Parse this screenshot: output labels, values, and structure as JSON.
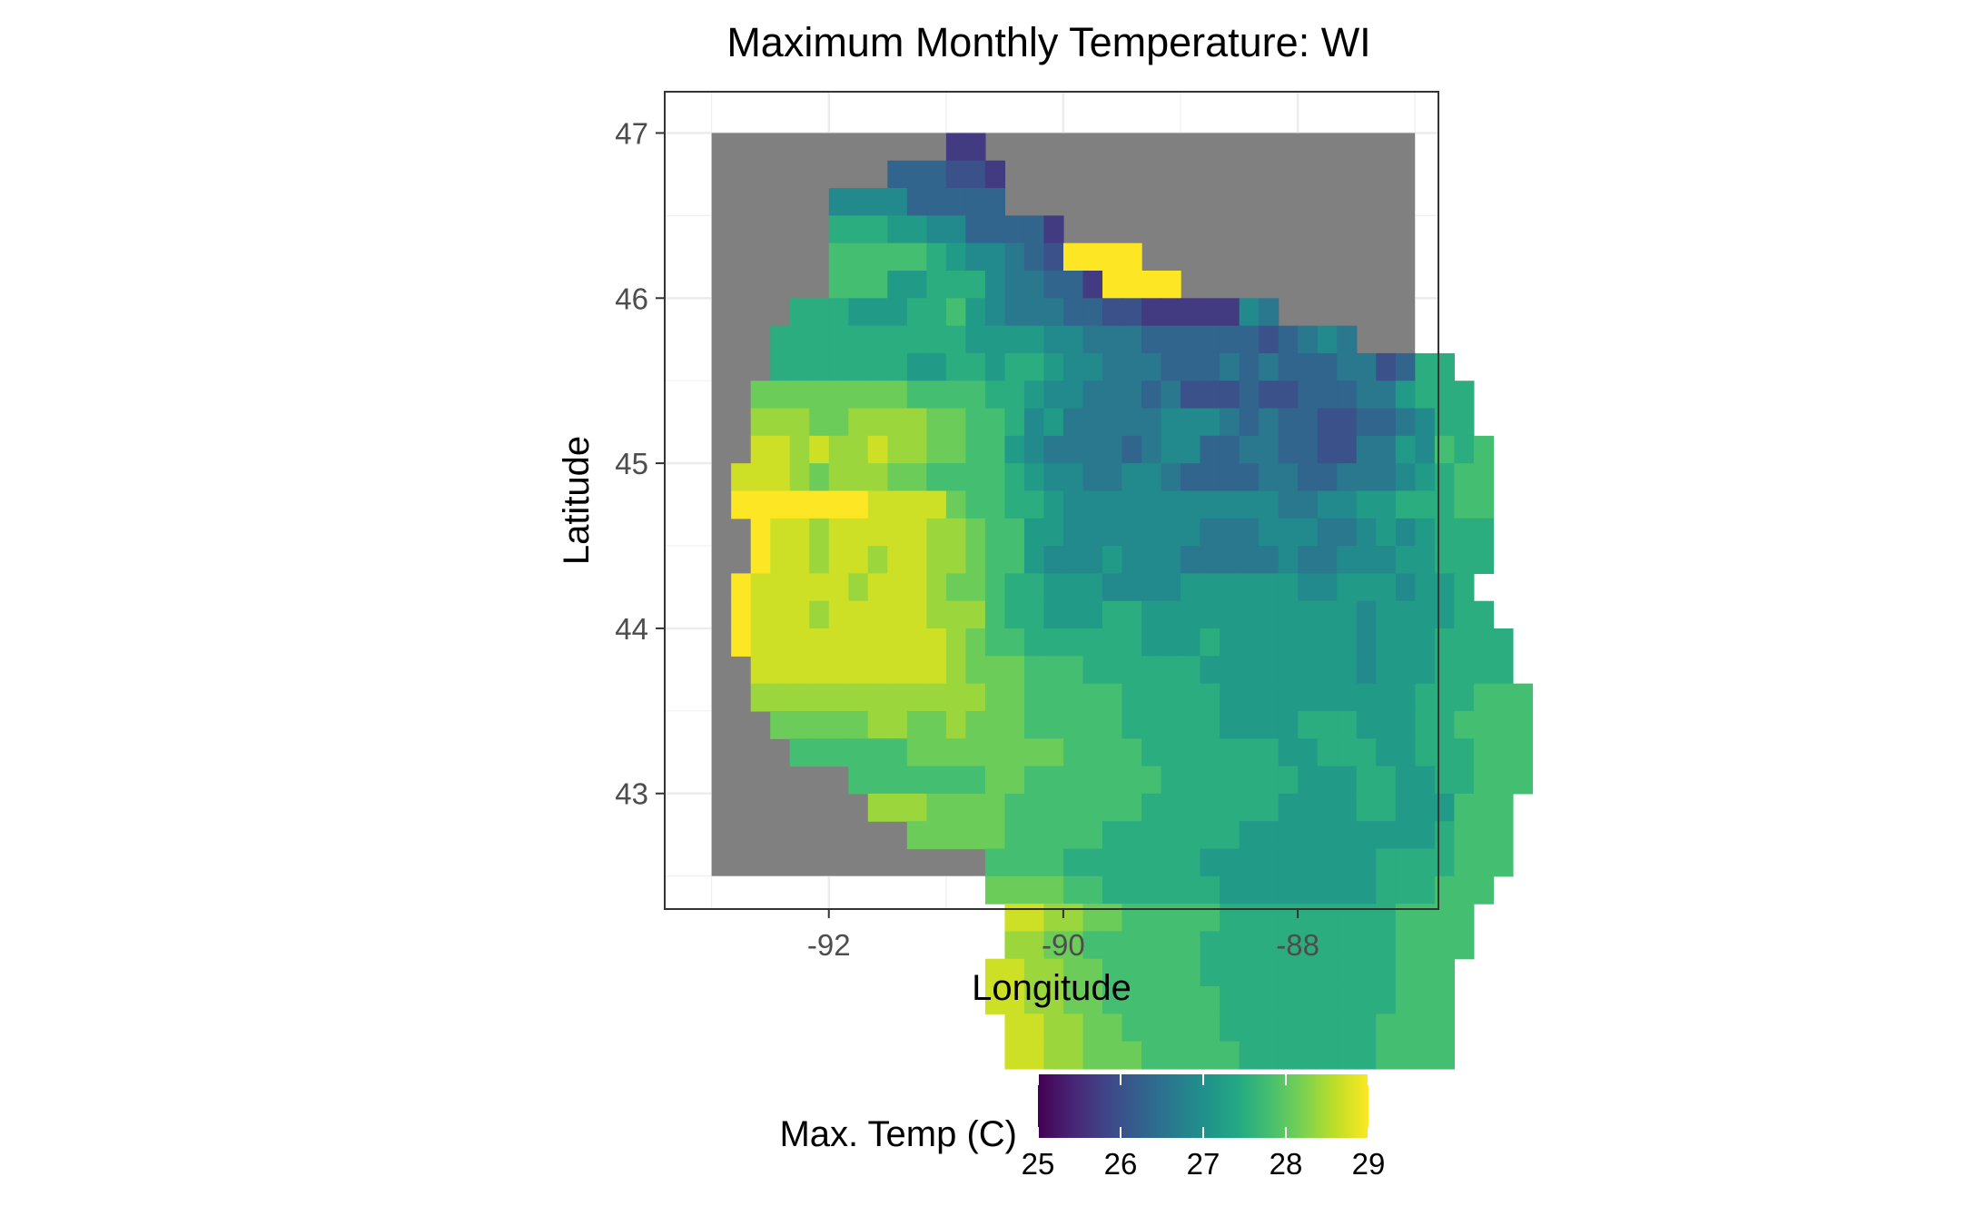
{
  "chart_data": {
    "type": "heatmap",
    "title": "Maximum Monthly Temperature: WI",
    "xlabel": "Longitude",
    "ylabel": "Latitude",
    "xlim": [
      -93.4,
      -86.8
    ],
    "ylim": [
      42.3,
      47.25
    ],
    "x_ticks": [
      -92,
      -90,
      -88
    ],
    "y_ticks": [
      43,
      44,
      45,
      46,
      47
    ],
    "x_tick_labels": [
      "-92",
      "-90",
      "-88"
    ],
    "y_tick_labels": [
      "43",
      "44",
      "45",
      "46",
      "47"
    ],
    "grid": true,
    "background_fill": "#808080",
    "raster_extent": {
      "lon": [
        -93.0,
        -87.0
      ],
      "lat": [
        42.5,
        47.0
      ]
    },
    "cell_size_deg": 0.1667,
    "color_scale": "viridis",
    "color_range": [
      25,
      29
    ],
    "legend": {
      "title": "Max. Temp (C)",
      "placement": "bottom",
      "ticks": [
        25,
        26,
        27,
        28,
        29
      ],
      "tick_labels": [
        "25",
        "26",
        "27",
        "28",
        "29"
      ]
    },
    "grid_rows": [
      "............LL...........................",
      ".........JJJKKL..........................",
      "......HHHHJJJJJ..........................",
      "......FFFGGHHJJJJL.......................",
      "......EEEEEFGHHIJKAAAA...................",
      "......EEEGGFFFHIIJJLAAAA.................",
      "....FFFGGGFFEGHIIIJJKKLLLLLHI............",
      "...FFFFFFFFFFGGGGHHIIIJJJJJJKJIHI........",
      "...FFFFFFFGGFFGFFGHHIIIJJJIJIJJJIIKJFF...",
      "..DDDDDDDDEEEEFFGHHIIIJIKKKJKKJJJIIGFFF..",
      "..CCCDDCCCCDDEEFHGIIIIIHHHIJIJJKKJJIHFF..",
      "..BBCBCCBCCDDEEGHIIIIJIHHJJIIJJKKIIGHEFE.",
      ".BBBCDCCCDDEEEEFGHHIIHHIJJJJIIJJIIIHGFEE.",
      ".AAAAAAABBBBDEEFFGHHHHHHHHHHHIIHHGGFFFEE.",
      "..ABBCBBBBBCCDEEGGHHHHHHHIIIHHHIIHGHGFFF.",
      "..ABBCBBCBBCCDEEGHHHGHHHIIIIIHIIHHHGGFFF.",
      ".ABBBBBCBBBCDDEFFGGGHHHHGGGGGGHHGGGHGGF..",
      ".ABBBCBBBBBCCCEFFGGGFFGGGGGGGGGGGHGGGGFF.",
      ".ABBBBBBBBBBCDEEFFFFFFGGGFGGGGGGGHGGGFFFF",
      "..BBBBBBBBBBCDDDEEEFFFFFFGGGGGGGGHGGGFFFF",
      "..CCCCCCCCCCCCDDEEEEEFFFFFGGGGGGGGGGFFFEEE",
      "...DDDDDCCDDCDDDEEEEEFFFFFGGGGFFFGGGFFEEEE",
      "....EEEEEEDDDDDDDDEEEEFFFFFFFGGFFFGGFFFEEE",
      ".......EEEEEEEDDEEEEEEEFFFFFFFGGGFFGGFFEEE",
      "........CCCDDDDEEEEEEEFFFFFFFGGGGFFGGGEEE",
      "..........DDDDDEEEEEFFFFFFFGGGGGGGGGGFEEE",
      "..............EEEEFFFFFFFGGGGGGGGGFFFFEEE",
      "..............DDDDEEFFFFFFGGGGGGGGFFFEEE",
      "...............BBCCDDEEEEEFFFFFFFFFEEEE",
      "...............CCDDEEEEEEFFFFFFFFFFEEEE",
      "..............BBCCDDEEEEEFFFFFFFFFFEEE",
      "..............BBCCDDEEEEEEFFFFFFFFFEEE",
      "...............BBCCDDEEEEEFFFFFFFFEEEE",
      "...............BBCCDDDEEEEEFFFFFFFEEEE"
    ],
    "grid_rows_note_removed": true,
    "level_values": {
      "A": 29.0,
      "B": 28.7,
      "C": 28.4,
      "D": 28.1,
      "E": 27.8,
      "F": 27.5,
      "G": 27.2,
      "H": 26.9,
      "I": 26.6,
      "J": 26.3,
      "K": 26.0,
      "L": 25.7
    }
  }
}
